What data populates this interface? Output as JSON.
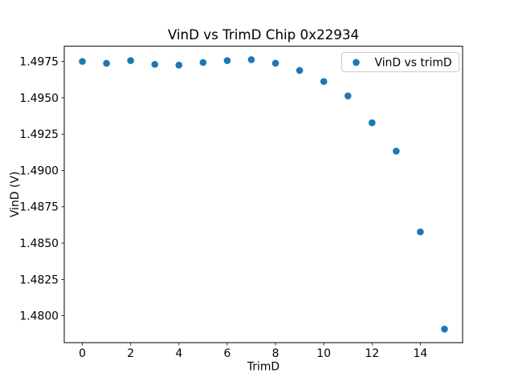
{
  "figure": {
    "window_title": "VinD vs TrimD Chip 0x22934"
  },
  "chart_data": {
    "type": "scatter",
    "title": "VinD vs TrimD Chip 0x22934",
    "xlabel": "TrimD",
    "ylabel": "VinD (V)",
    "series": [
      {
        "name": "VinD vs trimD",
        "x": [
          0,
          1,
          2,
          3,
          4,
          5,
          6,
          7,
          8,
          9,
          10,
          11,
          12,
          13,
          14,
          15
        ],
        "y": [
          1.4975,
          1.49737,
          1.49756,
          1.4973,
          1.49725,
          1.49743,
          1.49756,
          1.49762,
          1.49738,
          1.49688,
          1.49612,
          1.49513,
          1.49328,
          1.49133,
          1.48577,
          1.47908
        ]
      }
    ],
    "marker_color": "#1f77b4",
    "axis_color": "#000000",
    "background_color": "#ffffff",
    "xlim": [
      -0.75,
      15.75
    ],
    "ylim": [
      1.47815,
      1.49855
    ],
    "xticks": [
      0,
      2,
      4,
      6,
      8,
      10,
      12,
      14
    ],
    "yticks": [
      1.48,
      1.4825,
      1.485,
      1.4875,
      1.49,
      1.4925,
      1.495,
      1.4975
    ],
    "ytick_decimals": 4,
    "xtick_decimals": 0,
    "grid": false,
    "legend": {
      "position": "upper right",
      "border_color": "#cccccc",
      "entries": [
        "VinD vs trimD"
      ]
    }
  }
}
